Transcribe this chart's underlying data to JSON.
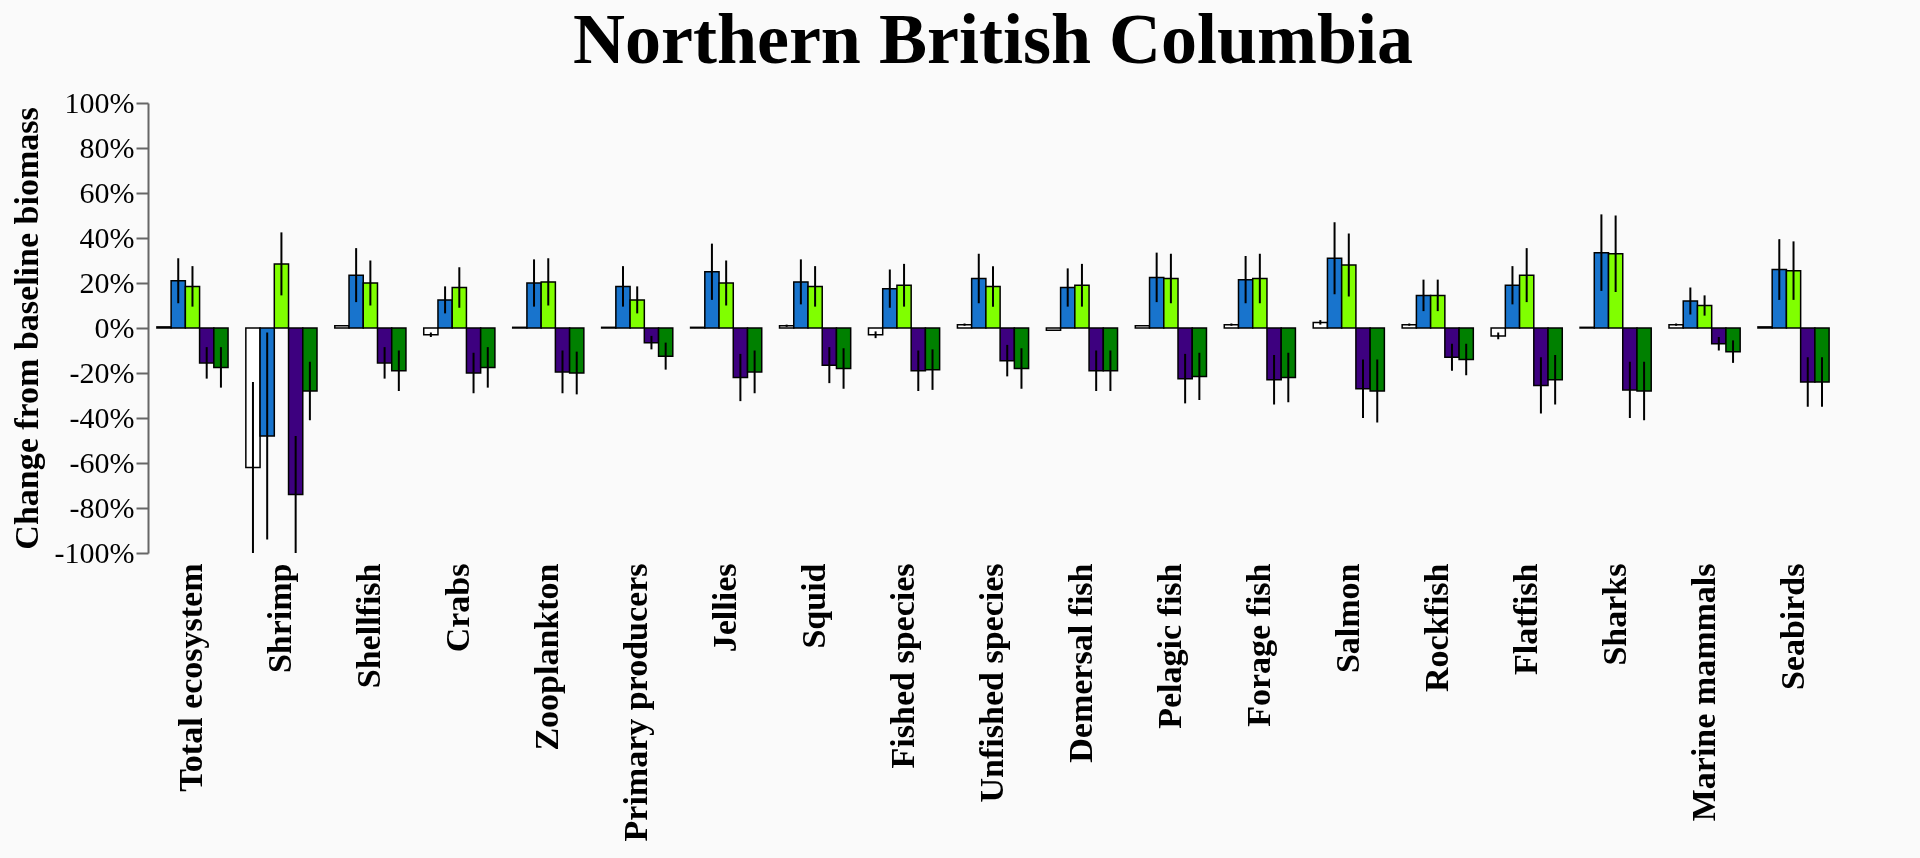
{
  "chart_data": {
    "type": "bar",
    "title": "Northern British Columbia",
    "ylabel": "Change from baseline biomass",
    "categories": [
      "Total ecosystem",
      "Shrimp",
      "Shellfish",
      "Crabs",
      "Zooplankton",
      "Primary producers",
      "Jellies",
      "Squid",
      "Fished species",
      "Unfished species",
      "Demersal fish",
      "Pelagic fish",
      "Forage fish",
      "Salmon",
      "Rockfish",
      "Flatfish",
      "Sharks",
      "Marine mammals",
      "Seabirds"
    ],
    "series": [
      {
        "color": "#ffffff",
        "values": [
          0.5,
          -62,
          1,
          -3,
          0.3,
          0.3,
          0.3,
          1,
          -3,
          1.5,
          -1,
          1,
          1.5,
          2.5,
          1.5,
          -3.5,
          0.3,
          1.5,
          0.5
        ],
        "errors": [
          null,
          38,
          null,
          1,
          null,
          null,
          null,
          0.5,
          1.5,
          0.5,
          null,
          null,
          0.5,
          1,
          0.5,
          1.5,
          null,
          0.5,
          null
        ]
      },
      {
        "color": "#1874cd",
        "values": [
          21,
          -48,
          23.5,
          12.5,
          20,
          18.5,
          25,
          20.5,
          17.5,
          22,
          18,
          22.5,
          21.5,
          31,
          14.5,
          19,
          33.5,
          12,
          26
        ],
        "errors": [
          10,
          46,
          12,
          6,
          10.5,
          9,
          12.5,
          10,
          8.5,
          11,
          8.5,
          11,
          10.5,
          16,
          7,
          8.5,
          17,
          6,
          13.5
        ]
      },
      {
        "color": "#80ff00",
        "values": [
          18.5,
          28.5,
          20,
          18,
          20.5,
          12.5,
          20,
          18.5,
          19,
          18.5,
          19,
          22,
          22,
          28,
          14.5,
          23.5,
          33,
          10,
          25.5
        ],
        "errors": [
          9,
          14,
          10,
          9,
          10.5,
          6,
          10,
          9,
          9.5,
          9,
          9.5,
          11,
          11,
          14,
          7,
          12,
          17,
          4.5,
          13
        ]
      },
      {
        "color": "#3d007f",
        "values": [
          -15.5,
          -74,
          -15.5,
          -20,
          -19.5,
          -6.5,
          -22,
          -16.5,
          -19,
          -14.5,
          -19,
          -22.5,
          -23,
          -27,
          -13,
          -25.5,
          -27.5,
          -7,
          -24
        ],
        "errors": [
          7,
          26,
          7,
          9,
          9.5,
          3,
          10.5,
          8,
          9,
          7,
          9,
          11,
          11,
          13,
          6,
          12.5,
          12.5,
          3,
          11
        ]
      },
      {
        "color": "#008000",
        "values": [
          -17.5,
          -28,
          -19,
          -17.5,
          -20,
          -12.5,
          -19.5,
          -18,
          -18.5,
          -18,
          -19,
          -21.5,
          -22,
          -28,
          -14,
          -23,
          -28,
          -10.5,
          -24
        ],
        "errors": [
          9,
          13,
          9,
          9,
          9.5,
          6,
          9.5,
          9,
          9,
          9,
          9,
          10.5,
          11,
          14,
          7,
          11,
          13,
          5,
          11
        ]
      }
    ],
    "ylim": [
      -100,
      100
    ],
    "yticks": [
      {
        "value": -100,
        "label": "-100%"
      },
      {
        "value": -80,
        "label": "-80%"
      },
      {
        "value": -60,
        "label": "-60%"
      },
      {
        "value": -40,
        "label": "-40%"
      },
      {
        "value": -20,
        "label": "-20%"
      },
      {
        "value": 0,
        "label": "0%"
      },
      {
        "value": 20,
        "label": "20%"
      },
      {
        "value": 40,
        "label": "40%"
      },
      {
        "value": 60,
        "label": "60%"
      },
      {
        "value": 80,
        "label": "80%"
      },
      {
        "value": 100,
        "label": "100%"
      }
    ],
    "grid": false,
    "legend": false
  }
}
